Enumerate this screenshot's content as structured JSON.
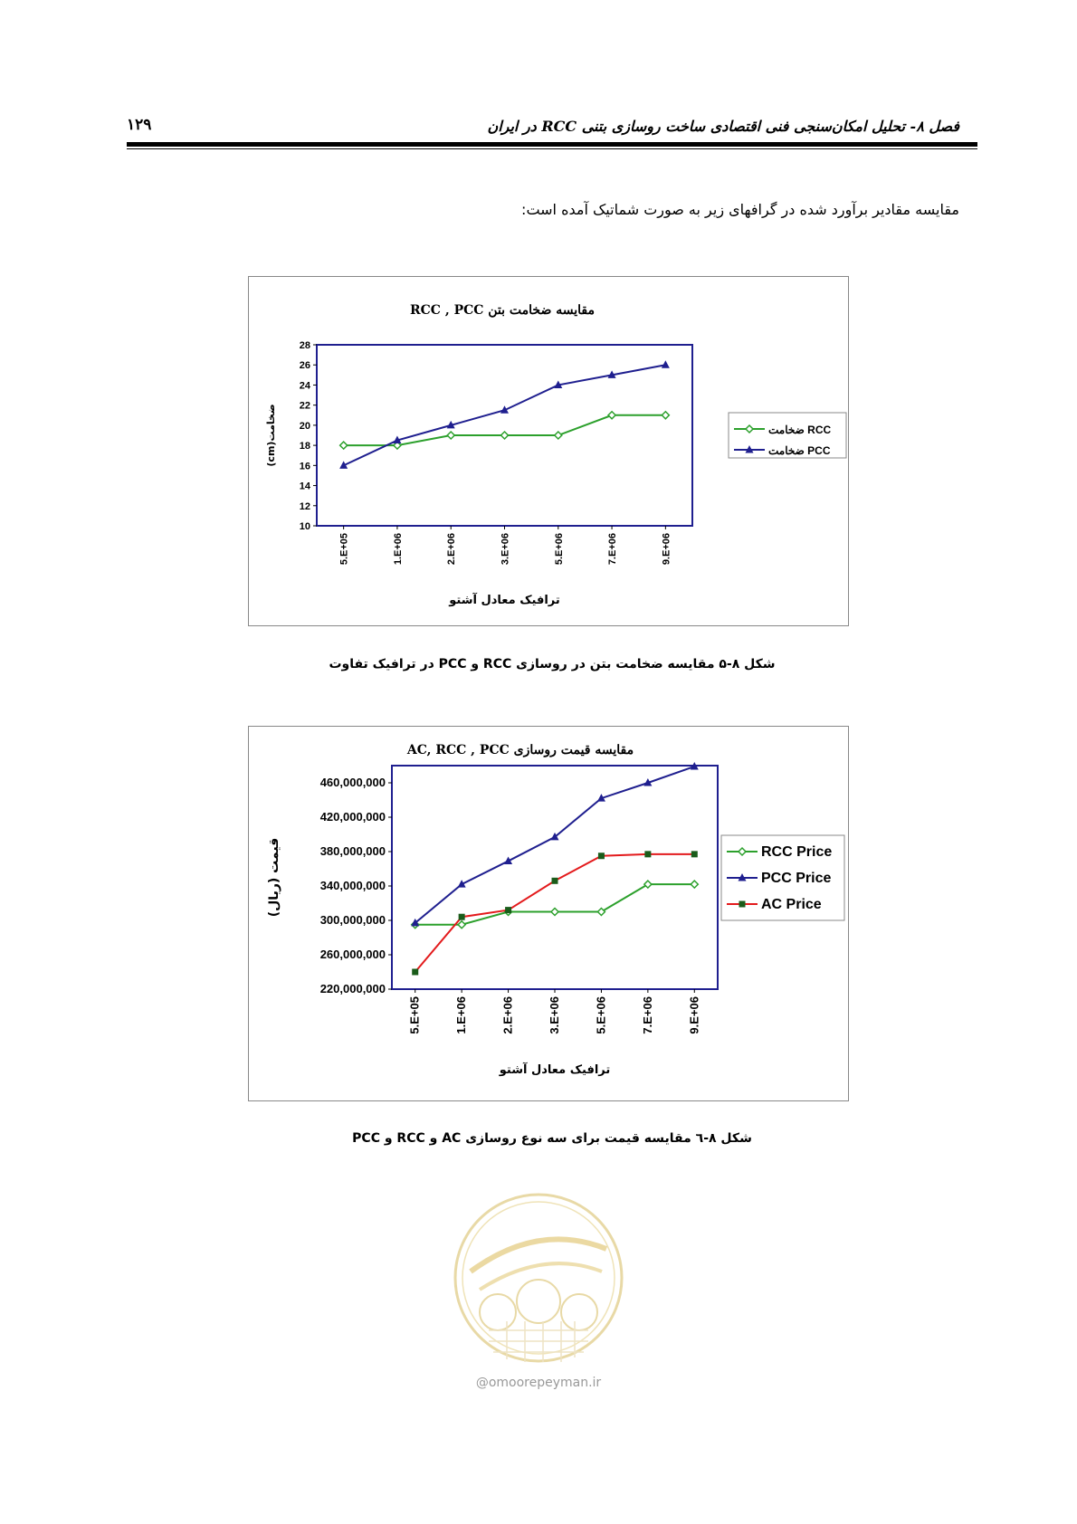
{
  "header": {
    "title": "فصل ۸- تحلیل امکان‌سنجی فنی اقتصادی ساخت روسازی بتنی RCC در ایران",
    "page_number": "۱۲۹"
  },
  "intro_text": "مقایسه مقادیر برآورد شده در گرافهای زیر به صورت شماتیک آمده است:",
  "figure1": {
    "caption": "شکل ۸-۵ مقایسه ضخامت بتن در روسازی RCC و PCC در ترافیک تفاوت"
  },
  "figure2": {
    "caption": "شکل ۸-٦ مقایسه قیمت برای سه نوع روسازی AC و RCC و PCC"
  },
  "logo": {
    "site": "@omoorepeyman.ir"
  },
  "chart_data": [
    {
      "type": "line",
      "title": "مقایسه ضخامت بتن RCC , PCC",
      "xlabel": "ترافیک معادل آشتو",
      "ylabel": "ضخامت(cm)",
      "categories": [
        "5.E+05",
        "1.E+06",
        "2.E+06",
        "3.E+06",
        "5.E+06",
        "7.E+06",
        "9.E+06"
      ],
      "ylim": [
        10,
        28
      ],
      "yticks": [
        10,
        12,
        14,
        16,
        18,
        20,
        22,
        24,
        26,
        28
      ],
      "legend_position": "right",
      "grid": false,
      "series": [
        {
          "name": "ضخامت RCC",
          "color": "#2ca02c",
          "marker": "diamond",
          "values": [
            18,
            18,
            19,
            19,
            19,
            21,
            21
          ]
        },
        {
          "name": "ضخامت PCC",
          "color": "#1f1f8f",
          "marker": "triangle",
          "values": [
            16,
            18.5,
            20,
            21.5,
            24,
            25,
            26
          ]
        }
      ]
    },
    {
      "type": "line",
      "title": "مقایسه قیمت روسازی AC, RCC , PCC",
      "xlabel": "ترافیک معادل آشتو",
      "ylabel": "قیمت (ریال)",
      "categories": [
        "5.E+05",
        "1.E+06",
        "2.E+06",
        "3.E+06",
        "5.E+06",
        "7.E+06",
        "9.E+06"
      ],
      "ylim": [
        220000000,
        480000000
      ],
      "yticks": [
        220000000,
        260000000,
        300000000,
        340000000,
        380000000,
        420000000,
        460000000
      ],
      "ytick_labels": [
        "220,000,000",
        "260,000,000",
        "300,000,000",
        "340,000,000",
        "380,000,000",
        "420,000,000",
        "460,000,000"
      ],
      "legend_position": "right",
      "grid": false,
      "series": [
        {
          "name": "RCC Price",
          "color": "#2ca02c",
          "marker": "diamond",
          "values": [
            295000000,
            295000000,
            310000000,
            310000000,
            310000000,
            342000000,
            342000000
          ]
        },
        {
          "name": "PCC Price",
          "color": "#1f1f8f",
          "marker": "triangle",
          "values": [
            297000000,
            342000000,
            369000000,
            397000000,
            442000000,
            460000000,
            479000000
          ]
        },
        {
          "name": "AC Price",
          "color": "#e31a1c",
          "marker": "square",
          "values": [
            240000000,
            304000000,
            312000000,
            346000000,
            375000000,
            377000000,
            377000000
          ]
        }
      ]
    }
  ]
}
